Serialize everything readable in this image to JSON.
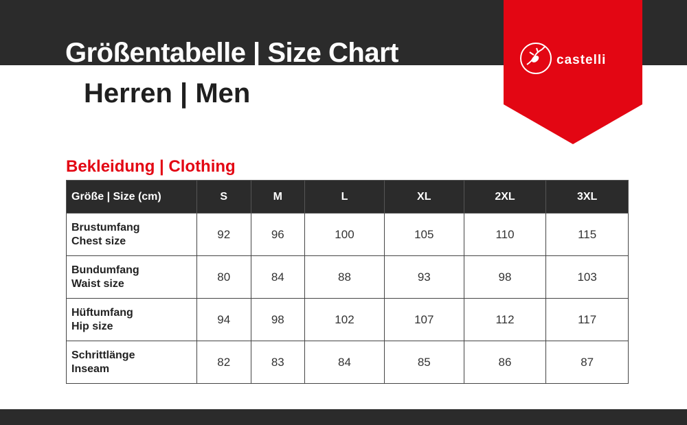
{
  "header": {
    "title": "Größentabelle | Size Chart",
    "subtitle": "Herren | Men"
  },
  "brand": {
    "name": "castelli",
    "logo_icon": "scorpion-icon",
    "color": "#e30613"
  },
  "section": {
    "title": "Bekleidung | Clothing"
  },
  "table": {
    "columns": [
      "Größe | Size (cm)",
      "S",
      "M",
      "L",
      "XL",
      "2XL",
      "3XL"
    ],
    "rows": [
      {
        "label_de": "Brustumfang",
        "label_en": "Chest size",
        "values": [
          "92",
          "96",
          "100",
          "105",
          "110",
          "115"
        ]
      },
      {
        "label_de": "Bundumfang",
        "label_en": "Waist size",
        "values": [
          "80",
          "84",
          "88",
          "93",
          "98",
          "103"
        ]
      },
      {
        "label_de": "Hüftumfang",
        "label_en": "Hip size",
        "values": [
          "94",
          "98",
          "102",
          "107",
          "112",
          "117"
        ]
      },
      {
        "label_de": "Schrittlänge",
        "label_en": "Inseam",
        "values": [
          "82",
          "83",
          "84",
          "85",
          "86",
          "87"
        ]
      }
    ]
  }
}
